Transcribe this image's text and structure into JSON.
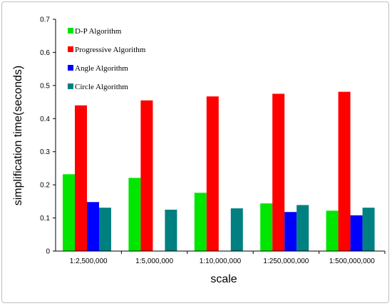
{
  "chart_data": {
    "type": "bar",
    "title": "",
    "xlabel": "scale",
    "ylabel": "simplification time(seconds)",
    "ylim": [
      0,
      0.7
    ],
    "yticks": [
      "0",
      "0.1",
      "0.2",
      "0.3",
      "0.4",
      "0.5",
      "0.6",
      "0.7"
    ],
    "categories": [
      "1:2,500,000",
      "1:5,000,000",
      "1:10,000,000",
      "1:250,000,000",
      "1:500,000,000"
    ],
    "series": [
      {
        "name": "D-P Algorithm",
        "color": "#00e600",
        "values": [
          0.232,
          0.221,
          0.176,
          0.144,
          0.122
        ]
      },
      {
        "name": "Progressive Algorithm",
        "color": "#ff0000",
        "values": [
          0.44,
          0.455,
          0.467,
          0.475,
          0.481
        ]
      },
      {
        "name": "Angle Algorithm",
        "color": "#0000ff",
        "values": [
          0.148,
          0,
          0,
          0.118,
          0.108
        ]
      },
      {
        "name": "Circle Algorithm",
        "color": "#008080",
        "values": [
          0.131,
          0.125,
          0.129,
          0.139,
          0.131
        ]
      }
    ],
    "grid": false,
    "legend_position": "top-left"
  }
}
